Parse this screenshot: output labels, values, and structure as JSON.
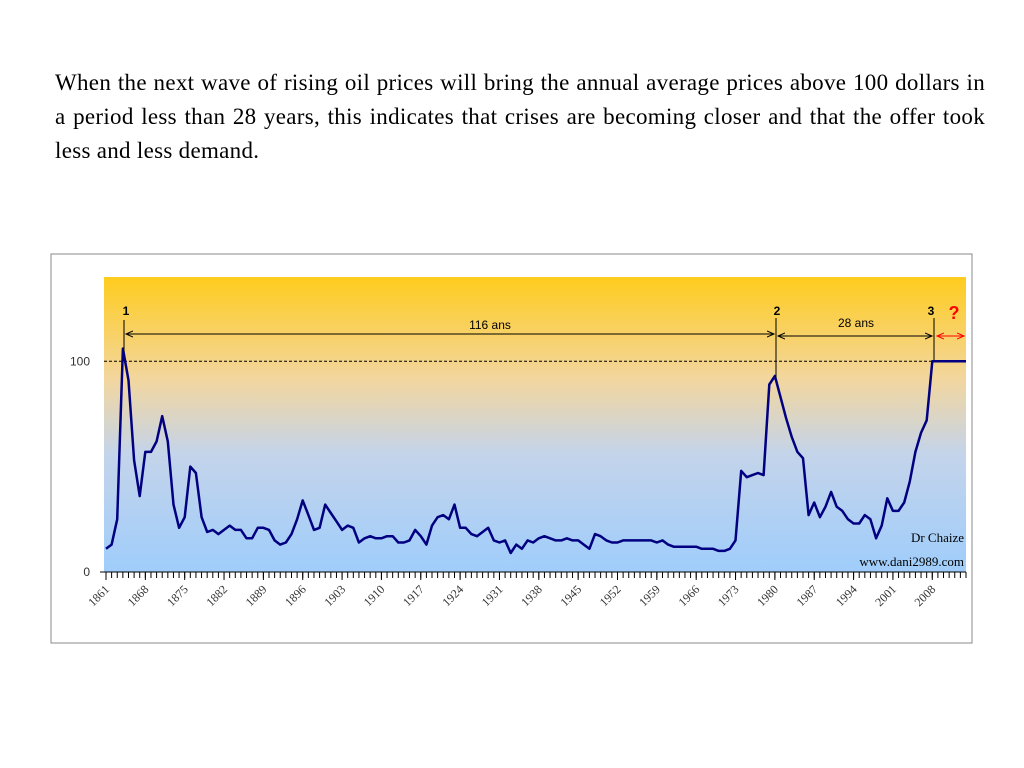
{
  "text": "When the next wave of rising oil prices will bring the annual average prices above 100 dollars in a period less than 28 years, this indicates that crises are becoming closer and that the offer took less and less demand.",
  "chart_data": {
    "type": "line",
    "color": "#000080",
    "annotations": [
      "1",
      "2",
      "3",
      "?",
      "116 ans",
      "28 ans",
      "Dr Chaize",
      "www.dani2989.com"
    ],
    "xlim": [
      1861,
      2014
    ],
    "ylim": [
      0,
      140
    ],
    "xticks": [
      1861,
      1868,
      1875,
      1882,
      1889,
      1896,
      1903,
      1910,
      1917,
      1924,
      1931,
      1938,
      1945,
      1952,
      1959,
      1966,
      1973,
      1980,
      1987,
      1994,
      2001,
      2008
    ],
    "yticks": [
      0,
      100
    ],
    "x": [
      1861,
      1862,
      1863,
      1864,
      1865,
      1866,
      1867,
      1868,
      1869,
      1870,
      1871,
      1872,
      1873,
      1874,
      1875,
      1876,
      1877,
      1878,
      1879,
      1880,
      1881,
      1882,
      1883,
      1884,
      1885,
      1886,
      1887,
      1888,
      1889,
      1890,
      1891,
      1892,
      1893,
      1894,
      1895,
      1896,
      1897,
      1898,
      1899,
      1900,
      1901,
      1902,
      1903,
      1904,
      1905,
      1906,
      1907,
      1908,
      1909,
      1910,
      1911,
      1912,
      1913,
      1914,
      1915,
      1916,
      1917,
      1918,
      1919,
      1920,
      1921,
      1922,
      1923,
      1924,
      1925,
      1926,
      1927,
      1928,
      1929,
      1930,
      1931,
      1932,
      1933,
      1934,
      1935,
      1936,
      1937,
      1938,
      1939,
      1940,
      1941,
      1942,
      1943,
      1944,
      1945,
      1946,
      1947,
      1948,
      1949,
      1950,
      1951,
      1952,
      1953,
      1954,
      1955,
      1956,
      1957,
      1958,
      1959,
      1960,
      1961,
      1962,
      1963,
      1964,
      1965,
      1966,
      1967,
      1968,
      1969,
      1970,
      1971,
      1972,
      1973,
      1974,
      1975,
      1976,
      1977,
      1978,
      1979,
      1980,
      1981,
      1982,
      1983,
      1984,
      1985,
      1986,
      1987,
      1988,
      1989,
      1990,
      1991,
      1992,
      1993,
      1994,
      1995,
      1996,
      1997,
      1998,
      1999,
      2000,
      2001,
      2002,
      2003,
      2004,
      2005,
      2006,
      2007,
      2008,
      2009,
      2010,
      2011,
      2012,
      2013,
      2014
    ],
    "values": [
      11,
      13,
      25,
      106,
      91,
      53,
      36,
      57,
      57,
      62,
      74,
      62,
      32,
      21,
      26,
      50,
      47,
      26,
      19,
      20,
      18,
      20,
      22,
      20,
      20,
      16,
      16,
      21,
      21,
      20,
      15,
      13,
      14,
      18,
      25,
      34,
      27,
      20,
      21,
      32,
      28,
      24,
      20,
      22,
      21,
      14,
      16,
      17,
      16,
      16,
      17,
      17,
      14,
      14,
      15,
      20,
      17,
      13,
      22,
      26,
      27,
      25,
      32,
      21,
      21,
      18,
      17,
      19,
      21,
      15,
      14,
      15,
      9,
      13,
      11,
      15,
      14,
      16,
      17,
      16,
      15,
      15,
      16,
      15,
      15,
      13,
      11,
      18,
      17,
      15,
      14,
      14,
      15,
      15,
      15,
      15,
      15,
      15,
      14,
      15,
      13,
      12,
      12,
      12,
      12,
      12,
      11,
      11,
      11,
      10,
      10,
      11,
      15,
      48,
      45,
      46,
      47,
      46,
      89,
      93,
      83,
      73,
      64,
      57,
      54,
      27,
      33,
      26,
      31,
      38,
      31,
      29,
      25,
      23,
      23,
      27,
      25,
      16,
      22,
      35,
      29,
      29,
      33,
      43,
      57,
      66,
      72,
      100,
      100,
      100,
      100,
      100,
      100,
      100
    ]
  }
}
